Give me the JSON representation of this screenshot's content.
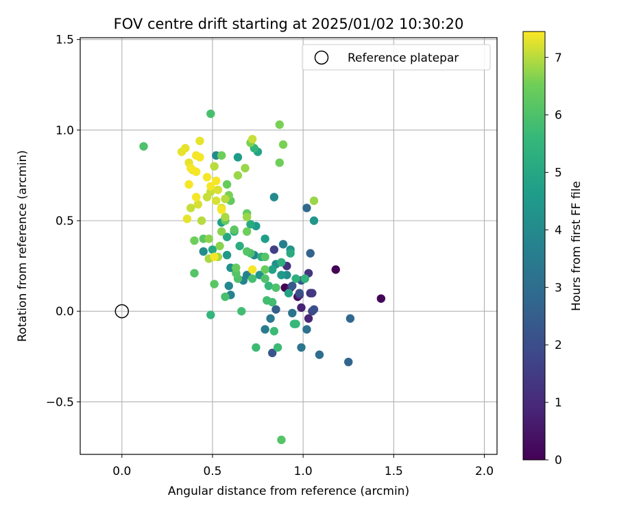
{
  "chart_data": {
    "type": "scatter",
    "title": "FOV centre drift starting at 2025/01/02 10:30:20",
    "xlabel": "Angular distance from reference (arcmin)",
    "ylabel": "Rotation from reference (arcmin)",
    "xlim": [
      -0.23,
      2.07
    ],
    "ylim": [
      -0.79,
      1.51
    ],
    "xticks": [
      0.0,
      0.5,
      1.0,
      1.5,
      2.0
    ],
    "xtick_labels": [
      "0.0",
      "0.5",
      "1.0",
      "1.5",
      "2.0"
    ],
    "yticks": [
      -0.5,
      0.0,
      0.5,
      1.0,
      1.5
    ],
    "ytick_labels": [
      "−0.5",
      "0.0",
      "0.5",
      "1.0",
      "1.5"
    ],
    "grid": true,
    "legend": {
      "placement": "top-right",
      "entries": [
        "Reference platepar"
      ]
    },
    "colorbar": {
      "label": "Hours from first FF file",
      "range": [
        0,
        7.45
      ],
      "ticks": [
        0,
        1,
        2,
        3,
        4,
        5,
        6,
        7
      ],
      "colormap": "viridis"
    },
    "reference_point": {
      "x": 0.0,
      "y": 0.0,
      "name": "Reference platepar"
    },
    "points": [
      {
        "x": 0.9,
        "y": 0.13,
        "h": 0.0
      },
      {
        "x": 1.18,
        "y": 0.23,
        "h": 0.05
      },
      {
        "x": 1.43,
        "y": 0.07,
        "h": 0.1
      },
      {
        "x": 0.97,
        "y": 0.08,
        "h": 0.3
      },
      {
        "x": 0.93,
        "y": 0.13,
        "h": 0.6
      },
      {
        "x": 0.99,
        "y": 0.02,
        "h": 0.8
      },
      {
        "x": 1.03,
        "y": -0.04,
        "h": 0.9
      },
      {
        "x": 0.98,
        "y": 0.09,
        "h": 1.0
      },
      {
        "x": 1.04,
        "y": 0.1,
        "h": 1.1
      },
      {
        "x": 0.91,
        "y": 0.25,
        "h": 1.2
      },
      {
        "x": 1.03,
        "y": 0.21,
        "h": 1.3
      },
      {
        "x": 1.05,
        "y": 0.1,
        "h": 1.4
      },
      {
        "x": 0.84,
        "y": 0.34,
        "h": 1.6
      },
      {
        "x": 1.05,
        "y": 0.0,
        "h": 1.8
      },
      {
        "x": 1.06,
        "y": 0.01,
        "h": 2.0
      },
      {
        "x": 0.98,
        "y": 0.1,
        "h": 2.1
      },
      {
        "x": 0.83,
        "y": -0.23,
        "h": 2.2
      },
      {
        "x": 0.94,
        "y": 0.14,
        "h": 2.3
      },
      {
        "x": 0.99,
        "y": 0.17,
        "h": 2.4
      },
      {
        "x": 0.85,
        "y": 0.01,
        "h": 2.5
      },
      {
        "x": 1.04,
        "y": 0.32,
        "h": 2.6
      },
      {
        "x": 1.25,
        "y": -0.28,
        "h": 2.7
      },
      {
        "x": 1.26,
        "y": -0.04,
        "h": 2.8
      },
      {
        "x": 1.02,
        "y": 0.57,
        "h": 2.9
      },
      {
        "x": 1.09,
        "y": -0.24,
        "h": 3.0
      },
      {
        "x": 1.02,
        "y": -0.1,
        "h": 3.1
      },
      {
        "x": 0.94,
        "y": -0.01,
        "h": 3.2
      },
      {
        "x": 0.99,
        "y": -0.2,
        "h": 3.3
      },
      {
        "x": 0.82,
        "y": -0.04,
        "h": 3.4
      },
      {
        "x": 0.79,
        "y": -0.1,
        "h": 3.5
      },
      {
        "x": 0.89,
        "y": 0.37,
        "h": 3.6
      },
      {
        "x": 0.6,
        "y": 0.09,
        "h": 3.7
      },
      {
        "x": 0.69,
        "y": 0.2,
        "h": 3.7
      },
      {
        "x": 0.67,
        "y": 0.17,
        "h": 3.8
      },
      {
        "x": 0.73,
        "y": 0.31,
        "h": 3.8
      },
      {
        "x": 0.59,
        "y": 0.14,
        "h": 3.9
      },
      {
        "x": 0.84,
        "y": 0.63,
        "h": 4.0
      },
      {
        "x": 0.52,
        "y": 0.86,
        "h": 4.0
      },
      {
        "x": 0.45,
        "y": 0.33,
        "h": 4.1
      },
      {
        "x": 0.91,
        "y": 0.2,
        "h": 4.1
      },
      {
        "x": 0.6,
        "y": 0.24,
        "h": 4.2
      },
      {
        "x": 0.85,
        "y": 0.26,
        "h": 4.2
      },
      {
        "x": 0.76,
        "y": 0.2,
        "h": 4.3
      },
      {
        "x": 0.93,
        "y": 0.34,
        "h": 4.3
      },
      {
        "x": 1.06,
        "y": 0.5,
        "h": 4.4
      },
      {
        "x": 0.88,
        "y": 0.2,
        "h": 4.5
      },
      {
        "x": 0.58,
        "y": 0.31,
        "h": 4.5
      },
      {
        "x": 0.64,
        "y": 0.85,
        "h": 4.6
      },
      {
        "x": 0.74,
        "y": 0.47,
        "h": 4.6
      },
      {
        "x": 0.79,
        "y": 0.4,
        "h": 4.7
      },
      {
        "x": 0.55,
        "y": 0.49,
        "h": 4.7
      },
      {
        "x": 0.83,
        "y": 0.23,
        "h": 4.8
      },
      {
        "x": 0.92,
        "y": 0.1,
        "h": 4.8
      },
      {
        "x": 0.75,
        "y": 0.88,
        "h": 4.9
      },
      {
        "x": 0.5,
        "y": 0.34,
        "h": 5.0
      },
      {
        "x": 0.58,
        "y": 0.41,
        "h": 5.0
      },
      {
        "x": 0.93,
        "y": 0.32,
        "h": 5.1
      },
      {
        "x": 0.71,
        "y": 0.48,
        "h": 5.1
      },
      {
        "x": 0.77,
        "y": 0.3,
        "h": 5.2
      },
      {
        "x": 0.65,
        "y": 0.36,
        "h": 5.2
      },
      {
        "x": 0.88,
        "y": 0.27,
        "h": 5.3
      },
      {
        "x": 0.96,
        "y": 0.18,
        "h": 5.3
      },
      {
        "x": 0.62,
        "y": 0.44,
        "h": 5.4
      },
      {
        "x": 1.01,
        "y": 0.18,
        "h": 5.4
      },
      {
        "x": 0.73,
        "y": 0.9,
        "h": 5.5
      },
      {
        "x": 0.49,
        "y": -0.02,
        "h": 5.5
      },
      {
        "x": 0.81,
        "y": 0.14,
        "h": 5.6
      },
      {
        "x": 0.95,
        "y": -0.07,
        "h": 5.6
      },
      {
        "x": 0.96,
        "y": -0.07,
        "h": 5.6
      },
      {
        "x": 0.86,
        "y": -0.2,
        "h": 5.7
      },
      {
        "x": 0.74,
        "y": -0.2,
        "h": 5.7
      },
      {
        "x": 0.84,
        "y": -0.11,
        "h": 5.7
      },
      {
        "x": 0.8,
        "y": 0.06,
        "h": 5.8
      },
      {
        "x": 0.83,
        "y": 0.05,
        "h": 5.8
      },
      {
        "x": 0.66,
        "y": 0.0,
        "h": 5.8
      },
      {
        "x": 0.71,
        "y": 0.32,
        "h": 5.9
      },
      {
        "x": 0.57,
        "y": 0.08,
        "h": 5.9
      },
      {
        "x": 0.72,
        "y": 0.18,
        "h": 5.9
      },
      {
        "x": 0.49,
        "y": 1.09,
        "h": 5.9
      },
      {
        "x": 0.12,
        "y": 0.91,
        "h": 6.0
      },
      {
        "x": 0.85,
        "y": 0.13,
        "h": 6.0
      },
      {
        "x": 0.64,
        "y": 0.18,
        "h": 6.0
      },
      {
        "x": 0.79,
        "y": 0.18,
        "h": 6.0
      },
      {
        "x": 0.88,
        "y": -0.71,
        "h": 6.1
      },
      {
        "x": 0.4,
        "y": 0.21,
        "h": 6.1
      },
      {
        "x": 0.63,
        "y": 0.21,
        "h": 6.1
      },
      {
        "x": 0.79,
        "y": 0.3,
        "h": 6.1
      },
      {
        "x": 0.69,
        "y": 0.33,
        "h": 6.1
      },
      {
        "x": 0.51,
        "y": 0.15,
        "h": 6.2
      },
      {
        "x": 0.62,
        "y": 0.45,
        "h": 6.2
      },
      {
        "x": 0.45,
        "y": 0.4,
        "h": 6.2
      },
      {
        "x": 0.6,
        "y": 0.61,
        "h": 6.3
      },
      {
        "x": 0.57,
        "y": 0.5,
        "h": 6.3
      },
      {
        "x": 0.69,
        "y": 0.54,
        "h": 6.3
      },
      {
        "x": 0.63,
        "y": 0.24,
        "h": 6.4
      },
      {
        "x": 0.79,
        "y": 0.23,
        "h": 6.4
      },
      {
        "x": 0.58,
        "y": 0.7,
        "h": 6.4
      },
      {
        "x": 0.4,
        "y": 0.39,
        "h": 6.5
      },
      {
        "x": 0.87,
        "y": 0.82,
        "h": 6.5
      },
      {
        "x": 0.55,
        "y": 0.86,
        "h": 6.5
      },
      {
        "x": 0.69,
        "y": 0.44,
        "h": 6.5
      },
      {
        "x": 0.87,
        "y": 1.03,
        "h": 6.6
      },
      {
        "x": 0.89,
        "y": 0.92,
        "h": 6.6
      },
      {
        "x": 0.71,
        "y": 0.93,
        "h": 6.6
      },
      {
        "x": 0.59,
        "y": 0.64,
        "h": 6.6
      },
      {
        "x": 0.55,
        "y": 0.44,
        "h": 6.7
      },
      {
        "x": 0.48,
        "y": 0.4,
        "h": 6.7
      },
      {
        "x": 0.54,
        "y": 0.36,
        "h": 6.7
      },
      {
        "x": 0.64,
        "y": 0.75,
        "h": 6.8
      },
      {
        "x": 0.69,
        "y": 0.52,
        "h": 6.8
      },
      {
        "x": 1.06,
        "y": 0.61,
        "h": 6.8
      },
      {
        "x": 0.68,
        "y": 0.79,
        "h": 6.8
      },
      {
        "x": 0.48,
        "y": 0.29,
        "h": 6.9
      },
      {
        "x": 0.57,
        "y": 0.52,
        "h": 6.9
      },
      {
        "x": 0.53,
        "y": 0.3,
        "h": 6.9
      },
      {
        "x": 0.51,
        "y": 0.8,
        "h": 7.0
      },
      {
        "x": 0.44,
        "y": 0.5,
        "h": 7.0
      },
      {
        "x": 0.57,
        "y": 0.62,
        "h": 7.0
      },
      {
        "x": 0.38,
        "y": 0.57,
        "h": 7.1
      },
      {
        "x": 0.49,
        "y": 0.66,
        "h": 7.1
      },
      {
        "x": 0.47,
        "y": 0.63,
        "h": 7.1
      },
      {
        "x": 0.72,
        "y": 0.95,
        "h": 7.1
      },
      {
        "x": 0.55,
        "y": 0.57,
        "h": 7.2
      },
      {
        "x": 0.52,
        "y": 0.61,
        "h": 7.2
      },
      {
        "x": 0.42,
        "y": 0.59,
        "h": 7.2
      },
      {
        "x": 0.53,
        "y": 0.67,
        "h": 7.2
      },
      {
        "x": 0.43,
        "y": 0.94,
        "h": 7.3
      },
      {
        "x": 0.36,
        "y": 0.51,
        "h": 7.3
      },
      {
        "x": 0.39,
        "y": 0.78,
        "h": 7.3
      },
      {
        "x": 0.33,
        "y": 0.88,
        "h": 7.3
      },
      {
        "x": 0.35,
        "y": 0.9,
        "h": 7.3
      },
      {
        "x": 0.37,
        "y": 0.82,
        "h": 7.3
      },
      {
        "x": 0.41,
        "y": 0.86,
        "h": 7.4
      },
      {
        "x": 0.43,
        "y": 0.85,
        "h": 7.4
      },
      {
        "x": 0.41,
        "y": 0.77,
        "h": 7.4
      },
      {
        "x": 0.38,
        "y": 0.79,
        "h": 7.4
      },
      {
        "x": 0.37,
        "y": 0.7,
        "h": 7.4
      },
      {
        "x": 0.47,
        "y": 0.74,
        "h": 7.4
      },
      {
        "x": 0.52,
        "y": 0.72,
        "h": 7.4
      },
      {
        "x": 0.41,
        "y": 0.63,
        "h": 7.4
      },
      {
        "x": 0.49,
        "y": 0.69,
        "h": 7.4
      },
      {
        "x": 0.51,
        "y": 0.3,
        "h": 7.4
      },
      {
        "x": 0.72,
        "y": 0.23,
        "h": 7.4
      },
      {
        "x": 0.55,
        "y": 0.56,
        "h": 7.4
      }
    ]
  }
}
